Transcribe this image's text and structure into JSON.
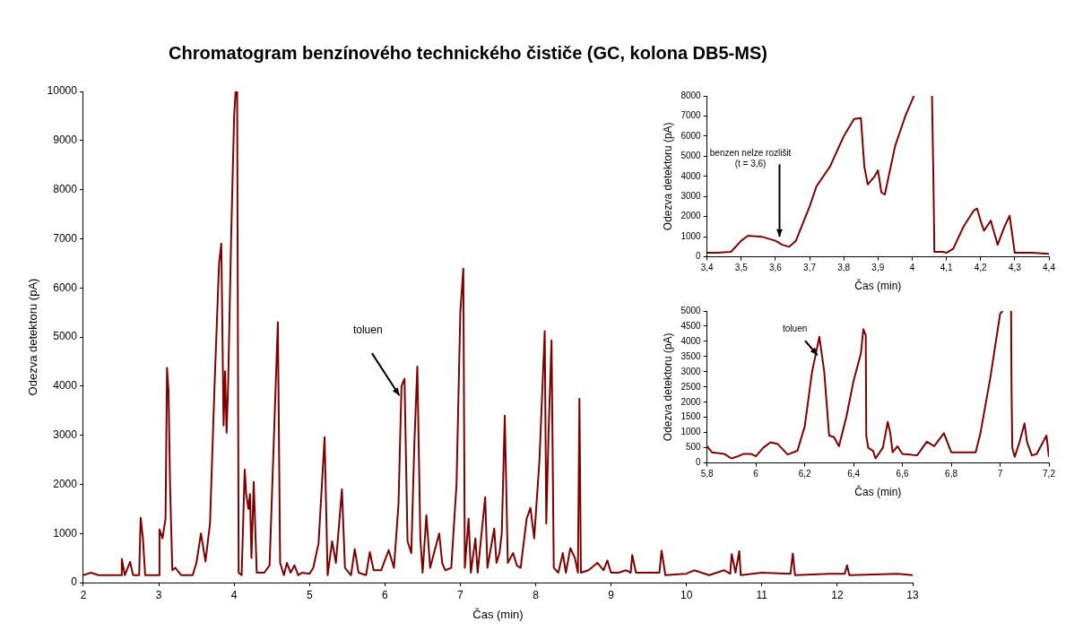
{
  "chart_data": [
    {
      "type": "line",
      "title": "Chromatogram benzínového technického čističe (GC, kolona DB5-MS)",
      "xlabel": "Čas (min)",
      "ylabel": "Odezva detektoru (pA)",
      "color": "#800000",
      "x": [
        2.0,
        2.1,
        2.2,
        2.5,
        2.51,
        2.55,
        2.62,
        2.66,
        2.74,
        2.76,
        2.79,
        2.82,
        3.0,
        3.01,
        3.05,
        3.09,
        3.11,
        3.13,
        3.15,
        3.18,
        3.22,
        3.3,
        3.45,
        3.5,
        3.56,
        3.62,
        3.68,
        3.74,
        3.8,
        3.83,
        3.86,
        3.88,
        3.9,
        3.92,
        3.96,
        4.0,
        4.02,
        4.04,
        4.06,
        4.1,
        4.14,
        4.16,
        4.19,
        4.21,
        4.23,
        4.26,
        4.3,
        4.4,
        4.47,
        4.54,
        4.58,
        4.61,
        4.66,
        4.7,
        4.75,
        4.8,
        4.85,
        4.9,
        5.0,
        5.05,
        5.12,
        5.2,
        5.24,
        5.3,
        5.35,
        5.43,
        5.47,
        5.55,
        5.6,
        5.65,
        5.75,
        5.8,
        5.85,
        5.95,
        6.05,
        6.12,
        6.18,
        6.22,
        6.26,
        6.3,
        6.35,
        6.39,
        6.43,
        6.47,
        6.5,
        6.55,
        6.6,
        6.72,
        6.76,
        6.8,
        6.88,
        6.95,
        7.0,
        7.04,
        7.06,
        7.11,
        7.14,
        7.2,
        7.23,
        7.33,
        7.36,
        7.45,
        7.48,
        7.52,
        7.55,
        7.59,
        7.63,
        7.7,
        7.75,
        7.8,
        7.88,
        7.93,
        7.98,
        8.05,
        8.12,
        8.14,
        8.17,
        8.21,
        8.24,
        8.3,
        8.36,
        8.4,
        8.46,
        8.52,
        8.56,
        8.58,
        8.6,
        8.7,
        8.82,
        8.9,
        8.95,
        9.0,
        9.1,
        9.2,
        9.26,
        9.28,
        9.33,
        9.5,
        9.64,
        9.67,
        9.72,
        10.0,
        10.1,
        10.3,
        10.5,
        10.58,
        10.6,
        10.65,
        10.7,
        10.72,
        11.0,
        11.38,
        11.41,
        11.44,
        11.9,
        12.1,
        12.13,
        12.16,
        12.8,
        13.0
      ],
      "values": [
        150,
        200,
        150,
        150,
        480,
        150,
        420,
        150,
        150,
        1320,
        900,
        150,
        150,
        1080,
        900,
        1300,
        4370,
        3900,
        2000,
        250,
        300,
        150,
        150,
        400,
        1000,
        430,
        1200,
        4000,
        6500,
        6900,
        3200,
        4300,
        3050,
        4000,
        7000,
        9500,
        10000,
        10000,
        200,
        150,
        2300,
        1800,
        1500,
        1800,
        500,
        2050,
        200,
        200,
        350,
        3500,
        5300,
        400,
        150,
        400,
        200,
        350,
        150,
        200,
        180,
        300,
        800,
        2960,
        150,
        840,
        400,
        1900,
        300,
        150,
        680,
        200,
        150,
        620,
        250,
        250,
        660,
        300,
        1590,
        4000,
        4150,
        840,
        600,
        2800,
        4400,
        900,
        200,
        1370,
        300,
        1000,
        400,
        250,
        300,
        2000,
        5500,
        6390,
        300,
        1300,
        200,
        900,
        200,
        1740,
        300,
        1100,
        400,
        600,
        1000,
        3400,
        400,
        600,
        350,
        300,
        1300,
        1520,
        900,
        2500,
        5120,
        1200,
        3000,
        4930,
        300,
        200,
        600,
        200,
        700,
        500,
        200,
        3740,
        200,
        250,
        400,
        250,
        450,
        200,
        200,
        250,
        200,
        560,
        200,
        200,
        200,
        650,
        150,
        180,
        250,
        150,
        250,
        180,
        580,
        200,
        640,
        150,
        200,
        180,
        590,
        150,
        180,
        180,
        350,
        150,
        180,
        150
      ],
      "xlim": [
        2,
        13
      ],
      "xticks": [
        2,
        3,
        4,
        5,
        6,
        7,
        8,
        9,
        10,
        11,
        12,
        13
      ],
      "ylim": [
        0,
        10000
      ],
      "yticks": [
        0,
        1000,
        2000,
        3000,
        4000,
        5000,
        6000,
        7000,
        8000,
        9000,
        10000
      ],
      "annotations": [
        "toluen"
      ]
    },
    {
      "type": "line",
      "xlabel": "Čas (min)",
      "ylabel": "Odezva detektoru (pA)",
      "color": "#800000",
      "x": [
        3.4,
        3.43,
        3.47,
        3.5,
        3.52,
        3.56,
        3.6,
        3.62,
        3.64,
        3.66,
        3.7,
        3.72,
        3.76,
        3.8,
        3.83,
        3.85,
        3.86,
        3.87,
        3.89,
        3.9,
        3.91,
        3.92,
        3.95,
        3.98,
        4.005,
        4.03,
        4.058,
        4.062,
        4.065,
        4.09,
        4.1,
        4.12,
        4.15,
        4.18,
        4.19,
        4.2,
        4.21,
        4.23,
        4.24,
        4.25,
        4.27,
        4.285,
        4.3,
        4.35,
        4.4
      ],
      "values": [
        200,
        200,
        250,
        800,
        1050,
        1000,
        800,
        600,
        500,
        800,
        2500,
        3500,
        4500,
        6000,
        6850,
        6900,
        4500,
        3600,
        4000,
        4300,
        3200,
        3100,
        5500,
        7000,
        8000,
        null,
        8000,
        4000,
        250,
        250,
        200,
        400,
        1500,
        2300,
        2400,
        1800,
        1300,
        1800,
        1200,
        600,
        1500,
        2050,
        200,
        200,
        150
      ],
      "xlim": [
        3.4,
        4.4
      ],
      "xticks": [
        {
          "value": 3.4,
          "label": "3,4"
        },
        {
          "value": 3.5,
          "label": "3,5"
        },
        {
          "value": 3.6,
          "label": "3,6"
        },
        {
          "value": 3.7,
          "label": "3,7"
        },
        {
          "value": 3.8,
          "label": "3,8"
        },
        {
          "value": 3.9,
          "label": "3,9"
        },
        4,
        {
          "value": 4.1,
          "label": "4,1"
        },
        {
          "value": 4.2,
          "label": "4,2"
        },
        {
          "value": 4.3,
          "label": "4,3"
        },
        {
          "value": 4.4,
          "label": "4,4"
        }
      ],
      "ylim": [
        0,
        8000
      ],
      "yticks": [
        0,
        1000,
        2000,
        3000,
        4000,
        5000,
        6000,
        7000,
        8000
      ],
      "annotations": [
        "benzen nelze rozlišit\n(t = 3,6)"
      ]
    },
    {
      "type": "line",
      "xlabel": "Čas (min)",
      "ylabel": "Odezva detektoru (pA)",
      "color": "#800000",
      "x": [
        5.8,
        5.82,
        5.85,
        5.87,
        5.9,
        5.92,
        5.95,
        5.98,
        6.0,
        6.03,
        6.06,
        6.09,
        6.13,
        6.17,
        6.2,
        6.23,
        6.26,
        6.28,
        6.3,
        6.32,
        6.34,
        6.37,
        6.4,
        6.43,
        6.44,
        6.45,
        6.452,
        6.46,
        6.48,
        6.49,
        6.52,
        6.54,
        6.55,
        6.56,
        6.58,
        6.6,
        6.66,
        6.7,
        6.73,
        6.77,
        6.8,
        6.9,
        6.92,
        6.96,
        7.0,
        7.01,
        7.03,
        7.045,
        7.047,
        7.05,
        7.06,
        7.08,
        7.1,
        7.11,
        7.13,
        7.15,
        7.17,
        7.19,
        7.2
      ],
      "values": [
        550,
        350,
        320,
        300,
        150,
        200,
        300,
        300,
        220,
        500,
        680,
        620,
        280,
        400,
        1200,
        3000,
        4150,
        3000,
        900,
        850,
        550,
        1500,
        2700,
        3600,
        4400,
        4200,
        900,
        500,
        400,
        150,
        500,
        1350,
        1000,
        350,
        550,
        300,
        250,
        700,
        550,
        980,
        350,
        350,
        1000,
        2800,
        4900,
        5000,
        null,
        5000,
        2300,
        500,
        200,
        700,
        1300,
        700,
        250,
        300,
        600,
        900,
        200
      ],
      "xlim": [
        5.8,
        7.2
      ],
      "xticks": [
        {
          "value": 5.8,
          "label": "5,8"
        },
        6,
        {
          "value": 6.2,
          "label": "6,2"
        },
        {
          "value": 6.4,
          "label": "6,4"
        },
        {
          "value": 6.6,
          "label": "6,6"
        },
        {
          "value": 6.8,
          "label": "6,8"
        },
        7,
        {
          "value": 7.2,
          "label": "7,2"
        }
      ],
      "ylim": [
        0,
        5000
      ],
      "yticks": [
        0,
        500,
        1000,
        1500,
        2000,
        2500,
        3000,
        3500,
        4000,
        4500,
        5000
      ],
      "annotations": [
        "toluen"
      ]
    }
  ]
}
